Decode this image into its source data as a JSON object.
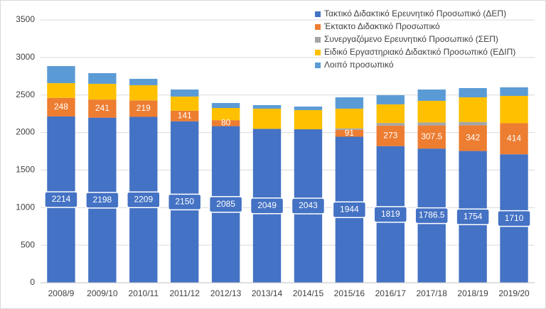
{
  "chart_data": {
    "type": "stacked_bar",
    "categories": [
      "2008/9",
      "2009/10",
      "2010/11",
      "2011/12",
      "2012/13",
      "2013/14",
      "2014/15",
      "2015/16",
      "2016/17",
      "2017/18",
      "2018/19",
      "2019/20"
    ],
    "series": [
      {
        "name": "Τακτικό Διδακτικό Ερευνητικό Προσωπικό (ΔΕΠ)",
        "color": "#4472c4",
        "values": [
          2214,
          2198,
          2209,
          2150,
          2085,
          2049,
          2043,
          1944,
          1819,
          1786.5,
          1754,
          1710
        ]
      },
      {
        "name": "Έκτακτο Διδακτικό Προσωπικό",
        "color": "#ed7d31",
        "values": [
          248,
          241,
          219,
          141,
          80,
          null,
          null,
          91,
          273,
          307.5,
          342,
          414
        ]
      },
      {
        "name": "Συνεργαζόμενο Ερευνητικό Προσωπικό (ΣΕΠ)",
        "color": "#a5a5a5",
        "values": [
          null,
          null,
          null,
          null,
          null,
          null,
          null,
          20,
          35,
          40,
          45,
          null
        ]
      },
      {
        "name": "Ειδικό Εργαστηριακό Διδακτικό Προσωπικό (ΕΔΙΠ)",
        "color": "#ffc000",
        "values": [
          196,
          210,
          202,
          188,
          162,
          269,
          256,
          263,
          248,
          288,
          328,
          364
        ]
      },
      {
        "name": "Λοιπό προσωπικό",
        "color": "#5b9bd5",
        "values": [
          227,
          142,
          85,
          94,
          66,
          47,
          47,
          151,
          122,
          151,
          123,
          114
        ]
      }
    ],
    "labeled_series": [
      0,
      1
    ],
    "ylim": [
      0,
      3500
    ],
    "yticks": [
      0,
      500,
      1000,
      1500,
      2000,
      2500,
      3000,
      3500
    ],
    "grid": true,
    "legend": "top-right"
  }
}
